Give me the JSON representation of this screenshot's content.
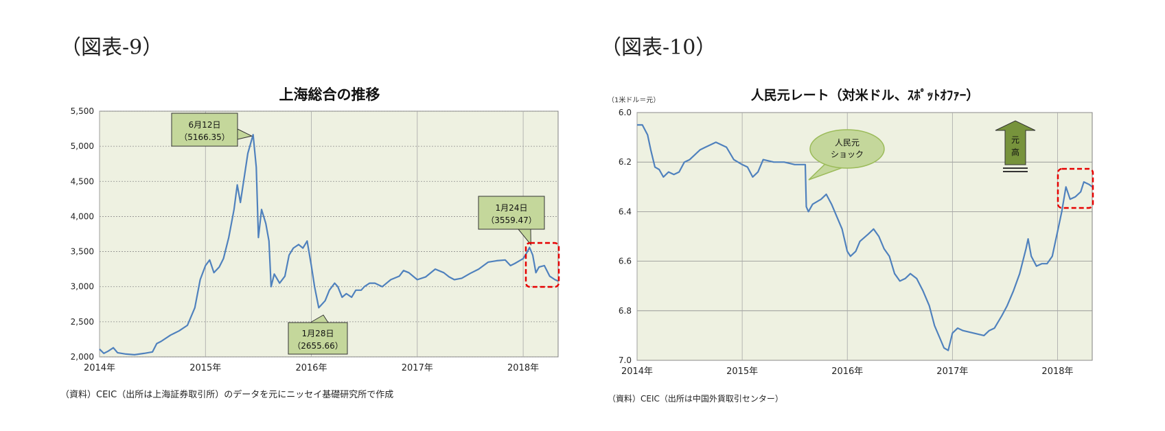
{
  "fig9": {
    "label": "（図表-9）",
    "source": "（資料）CEIC（出所は上海証券取引所）のデータを元にニッセイ基礎研究所で作成"
  },
  "fig10": {
    "label": "（図表-10）",
    "unit": "（1米ドル＝元）",
    "source": "（資料）CEIC（出所は中国外貨取引センター）"
  },
  "colors": {
    "line": "#4f81bd",
    "plot_bg": "#eef1e1",
    "callout_bg": "#c4d79b",
    "highlight": "#e60000",
    "arrow": "#77933c"
  },
  "chart_data": [
    {
      "type": "line",
      "title": "上海総合の推移",
      "xlabel": "",
      "ylabel": "",
      "x_ticks": [
        "2014年",
        "2015年",
        "2016年",
        "2017年",
        "2018年"
      ],
      "y_ticks": [
        "2,000",
        "2,500",
        "3,000",
        "3,500",
        "4,000",
        "4,500",
        "5,000",
        "5,500"
      ],
      "ylim": [
        2000,
        5500
      ],
      "xlim": [
        2014.0,
        2018.33
      ],
      "grid": true,
      "series": [
        {
          "values": [
            [
              2014.0,
              2110
            ],
            [
              2014.04,
              2050
            ],
            [
              2014.08,
              2080
            ],
            [
              2014.13,
              2130
            ],
            [
              2014.17,
              2060
            ],
            [
              2014.25,
              2040
            ],
            [
              2014.33,
              2030
            ],
            [
              2014.42,
              2050
            ],
            [
              2014.5,
              2070
            ],
            [
              2014.54,
              2190
            ],
            [
              2014.58,
              2220
            ],
            [
              2014.67,
              2310
            ],
            [
              2014.75,
              2370
            ],
            [
              2014.83,
              2450
            ],
            [
              2014.9,
              2700
            ],
            [
              2014.95,
              3100
            ],
            [
              2015.0,
              3300
            ],
            [
              2015.04,
              3380
            ],
            [
              2015.08,
              3200
            ],
            [
              2015.13,
              3280
            ],
            [
              2015.17,
              3400
            ],
            [
              2015.22,
              3700
            ],
            [
              2015.27,
              4100
            ],
            [
              2015.3,
              4450
            ],
            [
              2015.33,
              4200
            ],
            [
              2015.37,
              4600
            ],
            [
              2015.4,
              4900
            ],
            [
              2015.45,
              5166
            ],
            [
              2015.48,
              4700
            ],
            [
              2015.5,
              3700
            ],
            [
              2015.53,
              4100
            ],
            [
              2015.57,
              3900
            ],
            [
              2015.6,
              3650
            ],
            [
              2015.62,
              3000
            ],
            [
              2015.65,
              3180
            ],
            [
              2015.7,
              3050
            ],
            [
              2015.75,
              3150
            ],
            [
              2015.79,
              3450
            ],
            [
              2015.83,
              3550
            ],
            [
              2015.88,
              3600
            ],
            [
              2015.92,
              3550
            ],
            [
              2015.96,
              3650
            ],
            [
              2016.0,
              3300
            ],
            [
              2016.03,
              3000
            ],
            [
              2016.07,
              2700
            ],
            [
              2016.1,
              2750
            ],
            [
              2016.13,
              2800
            ],
            [
              2016.17,
              2950
            ],
            [
              2016.22,
              3050
            ],
            [
              2016.25,
              3000
            ],
            [
              2016.29,
              2850
            ],
            [
              2016.33,
              2900
            ],
            [
              2016.38,
              2850
            ],
            [
              2016.42,
              2950
            ],
            [
              2016.47,
              2950
            ],
            [
              2016.5,
              3000
            ],
            [
              2016.55,
              3050
            ],
            [
              2016.6,
              3050
            ],
            [
              2016.67,
              3000
            ],
            [
              2016.75,
              3100
            ],
            [
              2016.83,
              3150
            ],
            [
              2016.87,
              3230
            ],
            [
              2016.92,
              3200
            ],
            [
              2016.96,
              3150
            ],
            [
              2017.0,
              3100
            ],
            [
              2017.08,
              3140
            ],
            [
              2017.17,
              3250
            ],
            [
              2017.25,
              3200
            ],
            [
              2017.3,
              3140
            ],
            [
              2017.35,
              3100
            ],
            [
              2017.42,
              3120
            ],
            [
              2017.5,
              3190
            ],
            [
              2017.58,
              3250
            ],
            [
              2017.67,
              3350
            ],
            [
              2017.75,
              3370
            ],
            [
              2017.83,
              3380
            ],
            [
              2017.88,
              3300
            ],
            [
              2017.92,
              3330
            ],
            [
              2018.0,
              3400
            ],
            [
              2018.04,
              3500
            ],
            [
              2018.06,
              3559
            ],
            [
              2018.09,
              3450
            ],
            [
              2018.12,
              3200
            ],
            [
              2018.15,
              3280
            ],
            [
              2018.2,
              3300
            ],
            [
              2018.25,
              3150
            ],
            [
              2018.3,
              3100
            ],
            [
              2018.33,
              3080
            ]
          ]
        }
      ],
      "annotations": [
        {
          "line1": "6月12日",
          "line2": "（5166.35）"
        },
        {
          "line1": "1月28日",
          "line2": "（2655.66）"
        },
        {
          "line1": "1月24日",
          "line2": "（3559.47）"
        }
      ]
    },
    {
      "type": "line",
      "title": "人民元レート（対米ドル、ｽﾎﾟｯﾄｵﾌｧｰ）",
      "xlabel": "",
      "ylabel": "",
      "x_ticks": [
        "2014年",
        "2015年",
        "2016年",
        "2017年",
        "2018年"
      ],
      "y_ticks": [
        "6.0",
        "6.2",
        "6.4",
        "6.6",
        "6.8",
        "7.0"
      ],
      "ylim": [
        6.0,
        7.0
      ],
      "y_inverted": true,
      "xlim": [
        2014.0,
        2018.33
      ],
      "grid": true,
      "series": [
        {
          "values": [
            [
              2014.0,
              6.05
            ],
            [
              2014.05,
              6.05
            ],
            [
              2014.1,
              6.09
            ],
            [
              2014.13,
              6.15
            ],
            [
              2014.17,
              6.22
            ],
            [
              2014.21,
              6.23
            ],
            [
              2014.25,
              6.26
            ],
            [
              2014.3,
              6.24
            ],
            [
              2014.35,
              6.25
            ],
            [
              2014.4,
              6.24
            ],
            [
              2014.45,
              6.2
            ],
            [
              2014.5,
              6.19
            ],
            [
              2014.55,
              6.17
            ],
            [
              2014.6,
              6.15
            ],
            [
              2014.65,
              6.14
            ],
            [
              2014.7,
              6.13
            ],
            [
              2014.75,
              6.12
            ],
            [
              2014.8,
              6.13
            ],
            [
              2014.85,
              6.14
            ],
            [
              2014.92,
              6.19
            ],
            [
              2014.96,
              6.2
            ],
            [
              2015.0,
              6.21
            ],
            [
              2015.05,
              6.22
            ],
            [
              2015.1,
              6.26
            ],
            [
              2015.15,
              6.24
            ],
            [
              2015.2,
              6.19
            ],
            [
              2015.3,
              6.2
            ],
            [
              2015.4,
              6.2
            ],
            [
              2015.5,
              6.21
            ],
            [
              2015.6,
              6.21
            ],
            [
              2015.61,
              6.38
            ],
            [
              2015.63,
              6.4
            ],
            [
              2015.67,
              6.37
            ],
            [
              2015.75,
              6.35
            ],
            [
              2015.8,
              6.33
            ],
            [
              2015.85,
              6.37
            ],
            [
              2015.9,
              6.42
            ],
            [
              2015.95,
              6.47
            ],
            [
              2016.0,
              6.56
            ],
            [
              2016.03,
              6.58
            ],
            [
              2016.08,
              6.56
            ],
            [
              2016.12,
              6.52
            ],
            [
              2016.2,
              6.49
            ],
            [
              2016.25,
              6.47
            ],
            [
              2016.3,
              6.5
            ],
            [
              2016.35,
              6.55
            ],
            [
              2016.4,
              6.58
            ],
            [
              2016.45,
              6.65
            ],
            [
              2016.5,
              6.68
            ],
            [
              2016.55,
              6.67
            ],
            [
              2016.6,
              6.65
            ],
            [
              2016.66,
              6.67
            ],
            [
              2016.72,
              6.72
            ],
            [
              2016.78,
              6.78
            ],
            [
              2016.83,
              6.86
            ],
            [
              2016.88,
              6.91
            ],
            [
              2016.92,
              6.95
            ],
            [
              2016.96,
              6.96
            ],
            [
              2017.0,
              6.89
            ],
            [
              2017.05,
              6.87
            ],
            [
              2017.1,
              6.88
            ],
            [
              2017.2,
              6.89
            ],
            [
              2017.3,
              6.9
            ],
            [
              2017.35,
              6.88
            ],
            [
              2017.4,
              6.87
            ],
            [
              2017.47,
              6.82
            ],
            [
              2017.52,
              6.78
            ],
            [
              2017.58,
              6.72
            ],
            [
              2017.64,
              6.65
            ],
            [
              2017.7,
              6.55
            ],
            [
              2017.72,
              6.51
            ],
            [
              2017.75,
              6.58
            ],
            [
              2017.8,
              6.62
            ],
            [
              2017.85,
              6.61
            ],
            [
              2017.9,
              6.61
            ],
            [
              2017.95,
              6.58
            ],
            [
              2017.98,
              6.52
            ],
            [
              2018.0,
              6.48
            ],
            [
              2018.04,
              6.4
            ],
            [
              2018.08,
              6.3
            ],
            [
              2018.12,
              6.35
            ],
            [
              2018.17,
              6.34
            ],
            [
              2018.22,
              6.32
            ],
            [
              2018.25,
              6.28
            ],
            [
              2018.3,
              6.29
            ],
            [
              2018.33,
              6.3
            ]
          ]
        }
      ],
      "annotations": [
        {
          "line1": "人民元",
          "line2": "ショック"
        },
        {
          "line1": "元",
          "line2": "高"
        }
      ]
    }
  ]
}
